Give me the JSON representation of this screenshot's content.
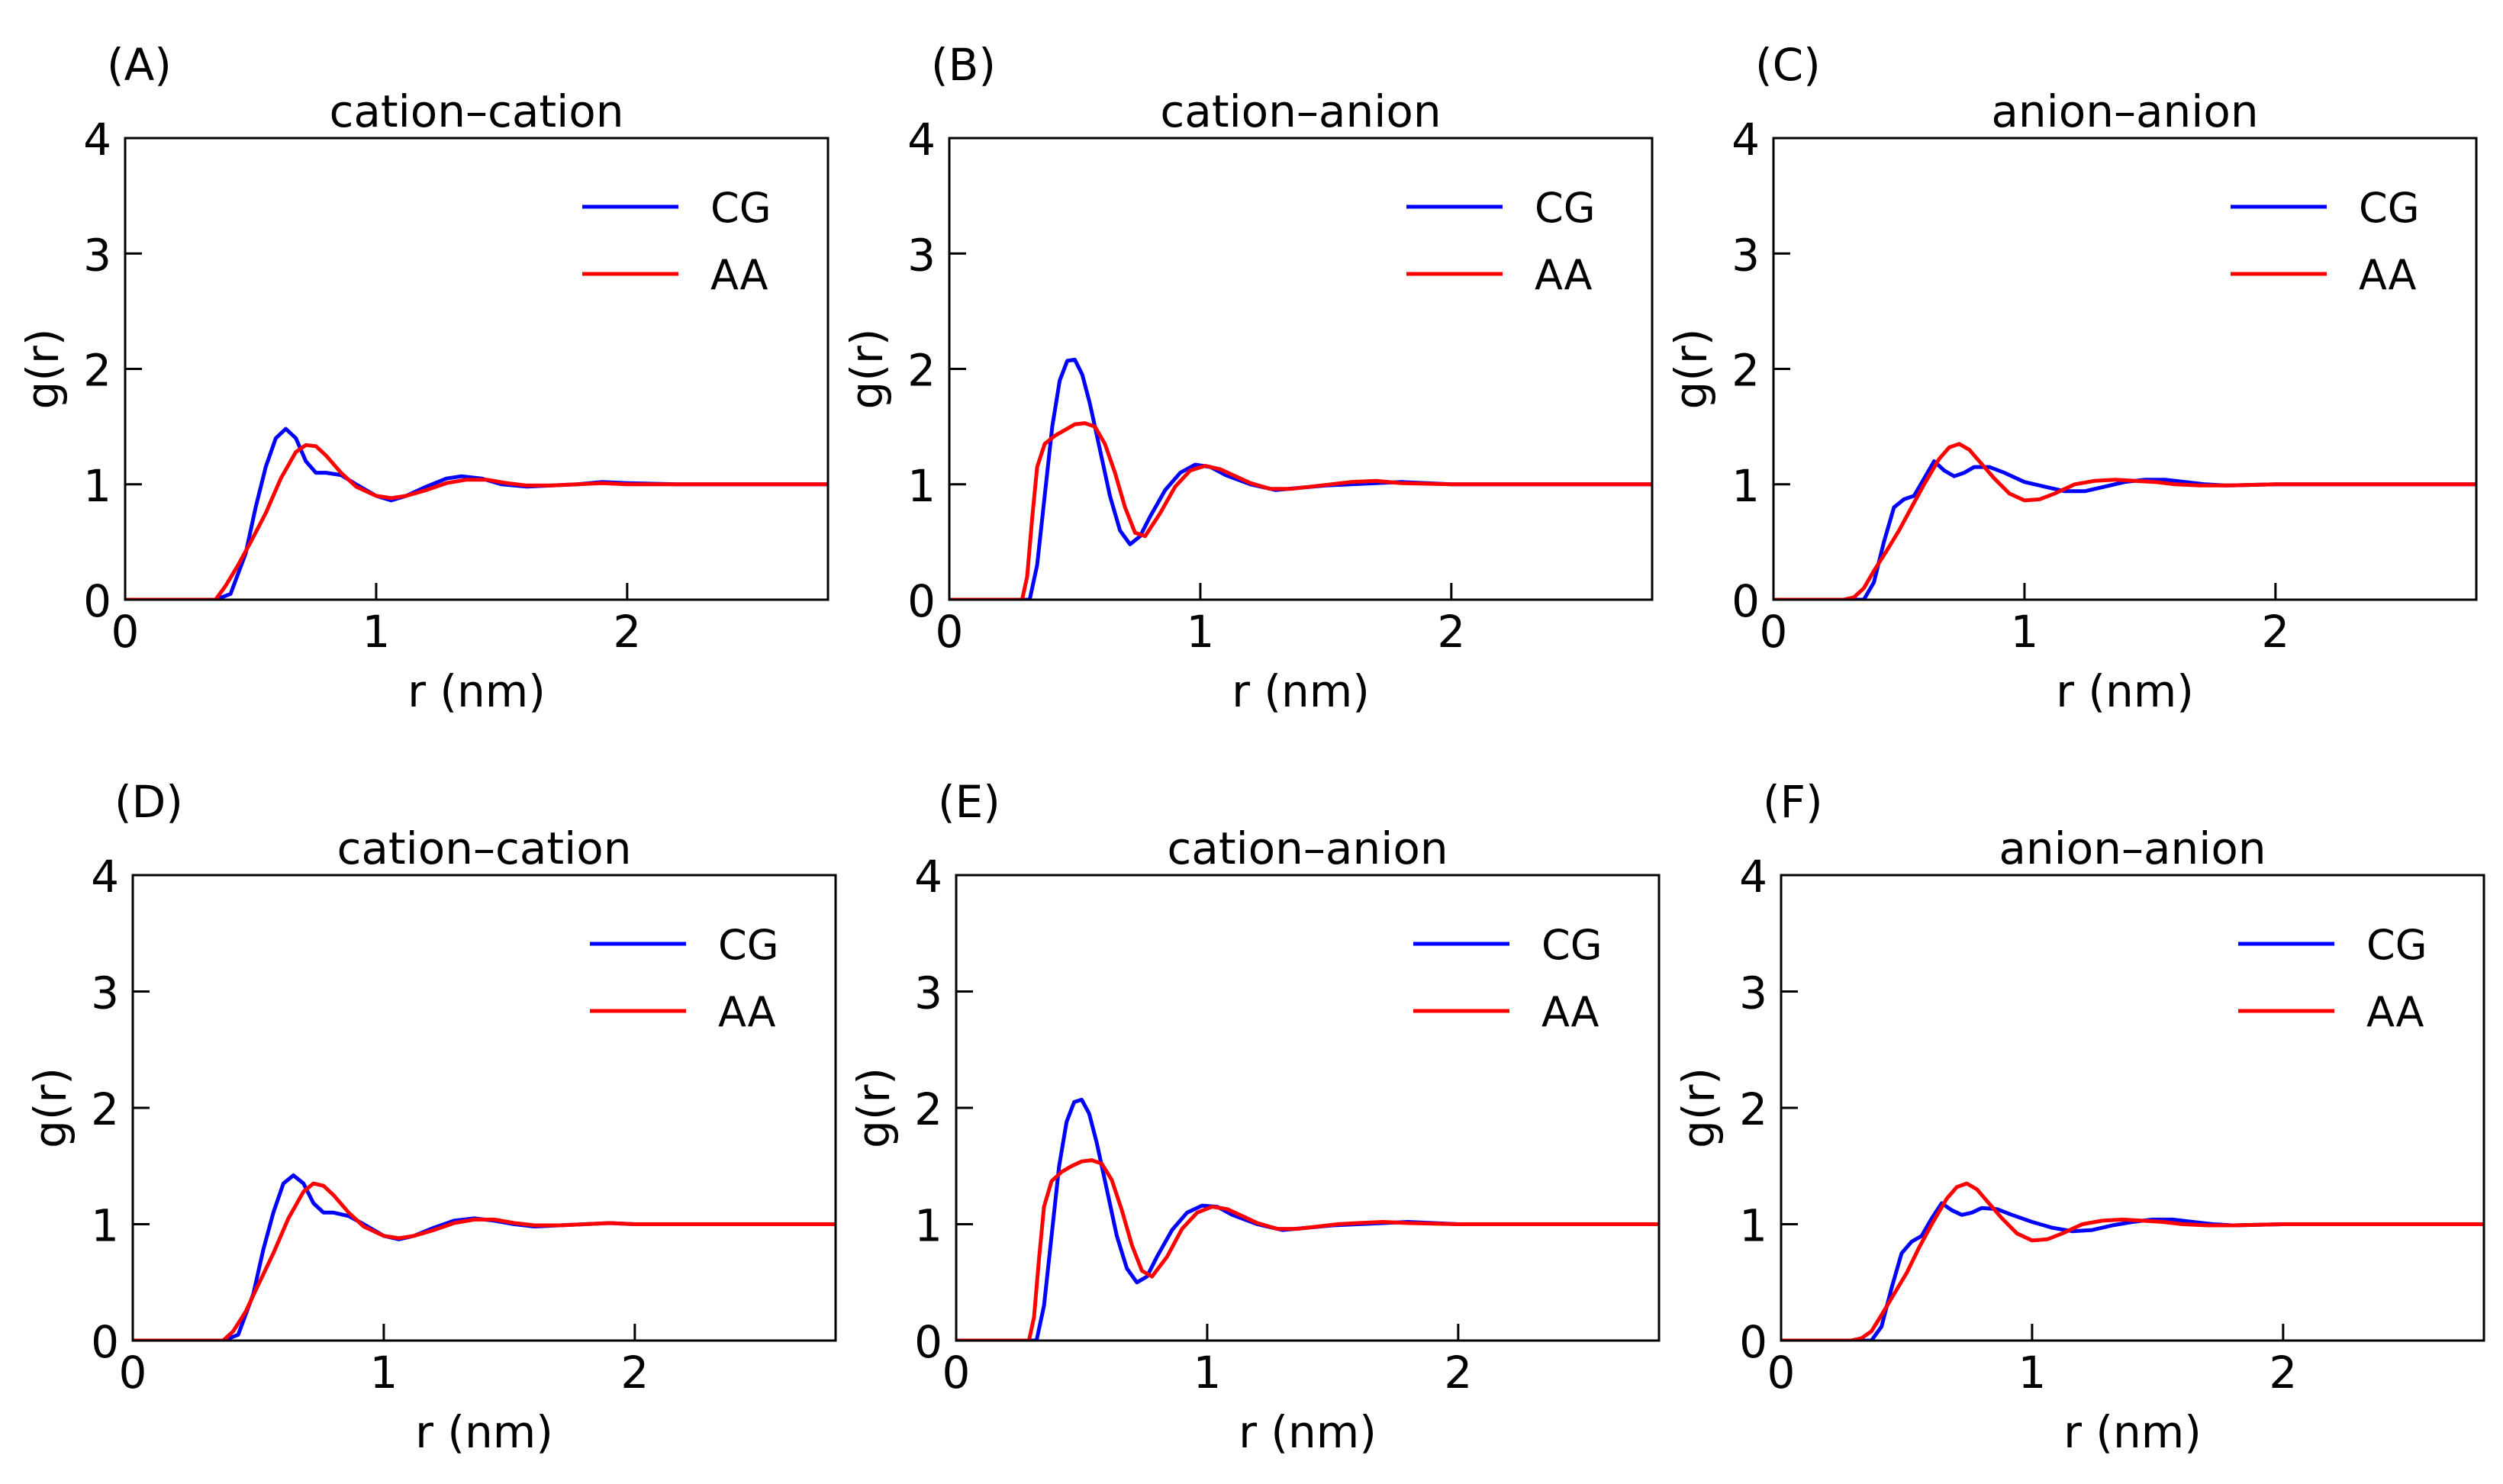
{
  "figure": {
    "title": ""
  },
  "chart_data": [
    {
      "panel_label": "(A)",
      "type": "line",
      "title": "cation–cation",
      "xlabel": "r (nm)",
      "ylabel": "g(r)",
      "xlim": [
        0,
        2.8
      ],
      "ylim": [
        0,
        4
      ],
      "xticks": [
        0,
        1,
        2
      ],
      "yticks": [
        0,
        1,
        2,
        3,
        4
      ],
      "legend_position": "top-right",
      "grid": false,
      "series": [
        {
          "name": "CG",
          "color": "#0000ff",
          "x": [
            0,
            0.36,
            0.42,
            0.48,
            0.52,
            0.56,
            0.6,
            0.64,
            0.68,
            0.72,
            0.76,
            0.8,
            0.86,
            0.92,
            1.0,
            1.06,
            1.12,
            1.2,
            1.28,
            1.34,
            1.42,
            1.5,
            1.6,
            1.7,
            1.8,
            1.9,
            2.0,
            2.2,
            2.5,
            2.8
          ],
          "y": [
            0,
            0,
            0.05,
            0.4,
            0.8,
            1.15,
            1.4,
            1.48,
            1.4,
            1.2,
            1.1,
            1.1,
            1.08,
            1.0,
            0.9,
            0.86,
            0.9,
            0.98,
            1.05,
            1.07,
            1.05,
            1.0,
            0.98,
            0.99,
            1.0,
            1.02,
            1.01,
            1.0,
            1.0,
            1.0
          ]
        },
        {
          "name": "AA",
          "color": "#ff0000",
          "x": [
            0,
            0.36,
            0.4,
            0.45,
            0.5,
            0.56,
            0.62,
            0.68,
            0.72,
            0.76,
            0.8,
            0.86,
            0.92,
            1.0,
            1.06,
            1.12,
            1.2,
            1.28,
            1.36,
            1.44,
            1.52,
            1.6,
            1.7,
            1.8,
            1.9,
            2.0,
            2.2,
            2.5,
            2.8
          ],
          "y": [
            0,
            0,
            0.12,
            0.3,
            0.5,
            0.75,
            1.05,
            1.28,
            1.34,
            1.33,
            1.25,
            1.1,
            0.98,
            0.9,
            0.88,
            0.9,
            0.95,
            1.01,
            1.04,
            1.04,
            1.01,
            0.99,
            0.99,
            1.0,
            1.01,
            1.0,
            1.0,
            1.0,
            1.0
          ]
        }
      ]
    },
    {
      "panel_label": "(B)",
      "type": "line",
      "title": "cation–anion",
      "xlabel": "r (nm)",
      "ylabel": "g(r)",
      "xlim": [
        0,
        2.8
      ],
      "ylim": [
        0,
        4
      ],
      "xticks": [
        0,
        1,
        2
      ],
      "yticks": [
        0,
        1,
        2,
        3,
        4
      ],
      "legend_position": "top-right",
      "grid": false,
      "series": [
        {
          "name": "CG",
          "color": "#0000ff",
          "x": [
            0,
            0.32,
            0.35,
            0.38,
            0.41,
            0.44,
            0.47,
            0.5,
            0.53,
            0.56,
            0.6,
            0.64,
            0.68,
            0.72,
            0.76,
            0.8,
            0.86,
            0.92,
            0.98,
            1.04,
            1.1,
            1.2,
            1.3,
            1.4,
            1.5,
            1.6,
            1.7,
            1.8,
            2.0,
            2.2,
            2.5,
            2.8
          ],
          "y": [
            0,
            0,
            0.3,
            0.9,
            1.5,
            1.9,
            2.07,
            2.08,
            1.95,
            1.7,
            1.3,
            0.9,
            0.6,
            0.48,
            0.55,
            0.72,
            0.95,
            1.1,
            1.17,
            1.15,
            1.08,
            1.0,
            0.95,
            0.97,
            0.99,
            1.0,
            1.01,
            1.02,
            1.0,
            1.0,
            1.0,
            1.0
          ]
        },
        {
          "name": "AA",
          "color": "#ff0000",
          "x": [
            0,
            0.29,
            0.31,
            0.33,
            0.35,
            0.38,
            0.42,
            0.46,
            0.5,
            0.54,
            0.58,
            0.62,
            0.66,
            0.7,
            0.74,
            0.78,
            0.84,
            0.9,
            0.96,
            1.02,
            1.08,
            1.14,
            1.2,
            1.28,
            1.36,
            1.44,
            1.52,
            1.6,
            1.7,
            1.8,
            2.0,
            2.2,
            2.5,
            2.8
          ],
          "y": [
            0,
            0,
            0.2,
            0.7,
            1.15,
            1.35,
            1.42,
            1.47,
            1.52,
            1.53,
            1.5,
            1.35,
            1.1,
            0.8,
            0.58,
            0.55,
            0.75,
            0.98,
            1.12,
            1.16,
            1.13,
            1.07,
            1.01,
            0.96,
            0.96,
            0.98,
            1.0,
            1.02,
            1.03,
            1.01,
            1.0,
            1.0,
            1.0,
            1.0
          ]
        }
      ]
    },
    {
      "panel_label": "(C)",
      "type": "line",
      "title": "anion–anion",
      "xlabel": "r (nm)",
      "ylabel": "g(r)",
      "xlim": [
        0,
        2.8
      ],
      "ylim": [
        0,
        4
      ],
      "xticks": [
        0,
        1,
        2
      ],
      "yticks": [
        0,
        1,
        2,
        3,
        4
      ],
      "legend_position": "top-right",
      "grid": false,
      "series": [
        {
          "name": "CG",
          "color": "#0000ff",
          "x": [
            0,
            0.36,
            0.4,
            0.44,
            0.48,
            0.52,
            0.56,
            0.6,
            0.64,
            0.68,
            0.72,
            0.76,
            0.8,
            0.86,
            0.92,
            1.0,
            1.08,
            1.16,
            1.24,
            1.32,
            1.4,
            1.48,
            1.56,
            1.64,
            1.72,
            1.8,
            2.0,
            2.2,
            2.5,
            2.8
          ],
          "y": [
            0,
            0,
            0.15,
            0.5,
            0.8,
            0.87,
            0.9,
            1.05,
            1.2,
            1.12,
            1.07,
            1.1,
            1.15,
            1.15,
            1.1,
            1.02,
            0.98,
            0.94,
            0.94,
            0.98,
            1.02,
            1.04,
            1.04,
            1.02,
            1.0,
            0.99,
            1.0,
            1.0,
            1.0,
            1.0
          ]
        },
        {
          "name": "AA",
          "color": "#ff0000",
          "x": [
            0,
            0.28,
            0.32,
            0.36,
            0.4,
            0.45,
            0.5,
            0.55,
            0.6,
            0.66,
            0.7,
            0.74,
            0.78,
            0.82,
            0.88,
            0.94,
            1.0,
            1.06,
            1.12,
            1.2,
            1.28,
            1.36,
            1.44,
            1.52,
            1.6,
            1.7,
            1.8,
            2.0,
            2.2,
            2.5,
            2.8
          ],
          "y": [
            0,
            0,
            0.02,
            0.1,
            0.25,
            0.42,
            0.6,
            0.8,
            1.0,
            1.22,
            1.32,
            1.35,
            1.3,
            1.2,
            1.05,
            0.92,
            0.86,
            0.87,
            0.92,
            1.0,
            1.03,
            1.04,
            1.03,
            1.02,
            1.0,
            0.99,
            0.99,
            1.0,
            1.0,
            1.0,
            1.0
          ]
        }
      ]
    },
    {
      "panel_label": "(D)",
      "type": "line",
      "title": "cation–cation",
      "xlabel": "r (nm)",
      "ylabel": "g(r)",
      "xlim": [
        0,
        2.8
      ],
      "ylim": [
        0,
        4
      ],
      "xticks": [
        0,
        1,
        2
      ],
      "yticks": [
        0,
        1,
        2,
        3,
        4
      ],
      "legend_position": "top-right",
      "grid": false,
      "series": [
        {
          "name": "CG",
          "color": "#0000ff",
          "x": [
            0,
            0.36,
            0.42,
            0.48,
            0.52,
            0.56,
            0.6,
            0.64,
            0.68,
            0.72,
            0.76,
            0.8,
            0.86,
            0.92,
            1.0,
            1.06,
            1.12,
            1.2,
            1.28,
            1.36,
            1.44,
            1.52,
            1.6,
            1.7,
            1.8,
            1.9,
            2.0,
            2.2,
            2.5,
            2.8
          ],
          "y": [
            0,
            0,
            0.05,
            0.4,
            0.78,
            1.1,
            1.35,
            1.42,
            1.35,
            1.18,
            1.1,
            1.1,
            1.07,
            1.0,
            0.9,
            0.87,
            0.9,
            0.97,
            1.03,
            1.05,
            1.03,
            1.0,
            0.98,
            0.99,
            1.0,
            1.01,
            1.0,
            1.0,
            1.0,
            1.0
          ]
        },
        {
          "name": "AA",
          "color": "#ff0000",
          "x": [
            0,
            0.36,
            0.4,
            0.45,
            0.5,
            0.56,
            0.62,
            0.68,
            0.72,
            0.76,
            0.8,
            0.86,
            0.92,
            1.0,
            1.06,
            1.12,
            1.2,
            1.28,
            1.36,
            1.44,
            1.52,
            1.6,
            1.7,
            1.8,
            1.9,
            2.0,
            2.2,
            2.5,
            2.8
          ],
          "y": [
            0,
            0,
            0.08,
            0.25,
            0.48,
            0.75,
            1.05,
            1.28,
            1.35,
            1.33,
            1.25,
            1.1,
            0.98,
            0.9,
            0.88,
            0.9,
            0.95,
            1.01,
            1.04,
            1.04,
            1.01,
            0.99,
            0.99,
            1.0,
            1.01,
            1.0,
            1.0,
            1.0,
            1.0
          ]
        }
      ]
    },
    {
      "panel_label": "(E)",
      "type": "line",
      "title": "cation–anion",
      "xlabel": "r (nm)",
      "ylabel": "g(r)",
      "xlim": [
        0,
        2.8
      ],
      "ylim": [
        0,
        4
      ],
      "xticks": [
        0,
        1,
        2
      ],
      "yticks": [
        0,
        1,
        2,
        3,
        4
      ],
      "legend_position": "top-right",
      "grid": false,
      "series": [
        {
          "name": "CG",
          "color": "#0000ff",
          "x": [
            0,
            0.32,
            0.35,
            0.38,
            0.41,
            0.44,
            0.47,
            0.5,
            0.53,
            0.56,
            0.6,
            0.64,
            0.68,
            0.72,
            0.76,
            0.8,
            0.86,
            0.92,
            0.98,
            1.04,
            1.1,
            1.2,
            1.3,
            1.4,
            1.5,
            1.6,
            1.7,
            1.8,
            2.0,
            2.2,
            2.5,
            2.8
          ],
          "y": [
            0,
            0,
            0.3,
            0.9,
            1.5,
            1.88,
            2.05,
            2.07,
            1.95,
            1.7,
            1.3,
            0.9,
            0.62,
            0.5,
            0.55,
            0.72,
            0.95,
            1.1,
            1.16,
            1.15,
            1.08,
            1.0,
            0.95,
            0.97,
            0.99,
            1.0,
            1.01,
            1.02,
            1.0,
            1.0,
            1.0,
            1.0
          ]
        },
        {
          "name": "AA",
          "color": "#ff0000",
          "x": [
            0,
            0.29,
            0.31,
            0.33,
            0.35,
            0.38,
            0.42,
            0.46,
            0.5,
            0.54,
            0.58,
            0.62,
            0.66,
            0.7,
            0.74,
            0.78,
            0.84,
            0.9,
            0.96,
            1.02,
            1.08,
            1.14,
            1.2,
            1.28,
            1.36,
            1.44,
            1.52,
            1.6,
            1.7,
            1.8,
            2.0,
            2.2,
            2.5,
            2.8
          ],
          "y": [
            0,
            0,
            0.2,
            0.7,
            1.15,
            1.37,
            1.45,
            1.5,
            1.54,
            1.55,
            1.52,
            1.38,
            1.12,
            0.82,
            0.6,
            0.55,
            0.72,
            0.96,
            1.1,
            1.15,
            1.13,
            1.07,
            1.01,
            0.96,
            0.96,
            0.98,
            1.0,
            1.01,
            1.02,
            1.01,
            1.0,
            1.0,
            1.0,
            1.0
          ]
        }
      ]
    },
    {
      "panel_label": "(F)",
      "type": "line",
      "title": "anion–anion",
      "xlabel": "r (nm)",
      "ylabel": "g(r)",
      "xlim": [
        0,
        2.8
      ],
      "ylim": [
        0,
        4
      ],
      "xticks": [
        0,
        1,
        2
      ],
      "yticks": [
        0,
        1,
        2,
        3,
        4
      ],
      "legend_position": "top-right",
      "grid": false,
      "series": [
        {
          "name": "CG",
          "color": "#0000ff",
          "x": [
            0,
            0.36,
            0.4,
            0.44,
            0.48,
            0.52,
            0.56,
            0.6,
            0.64,
            0.68,
            0.72,
            0.76,
            0.8,
            0.86,
            0.92,
            1.0,
            1.08,
            1.16,
            1.24,
            1.32,
            1.4,
            1.48,
            1.56,
            1.64,
            1.72,
            1.8,
            2.0,
            2.2,
            2.5,
            2.8
          ],
          "y": [
            0,
            0,
            0.12,
            0.45,
            0.75,
            0.85,
            0.9,
            1.05,
            1.18,
            1.12,
            1.08,
            1.1,
            1.14,
            1.13,
            1.08,
            1.02,
            0.97,
            0.94,
            0.95,
            0.99,
            1.02,
            1.04,
            1.04,
            1.02,
            1.0,
            0.99,
            1.0,
            1.0,
            1.0,
            1.0
          ]
        },
        {
          "name": "AA",
          "color": "#ff0000",
          "x": [
            0,
            0.28,
            0.32,
            0.36,
            0.4,
            0.45,
            0.5,
            0.55,
            0.6,
            0.66,
            0.7,
            0.74,
            0.78,
            0.82,
            0.88,
            0.94,
            1.0,
            1.06,
            1.12,
            1.2,
            1.28,
            1.36,
            1.44,
            1.52,
            1.6,
            1.7,
            1.8,
            2.0,
            2.2,
            2.5,
            2.8
          ],
          "y": [
            0,
            0,
            0.02,
            0.08,
            0.22,
            0.4,
            0.58,
            0.8,
            1.0,
            1.22,
            1.32,
            1.35,
            1.3,
            1.2,
            1.05,
            0.92,
            0.86,
            0.87,
            0.92,
            1.0,
            1.03,
            1.04,
            1.03,
            1.02,
            1.0,
            0.99,
            0.99,
            1.0,
            1.0,
            1.0,
            1.0
          ]
        }
      ]
    }
  ]
}
